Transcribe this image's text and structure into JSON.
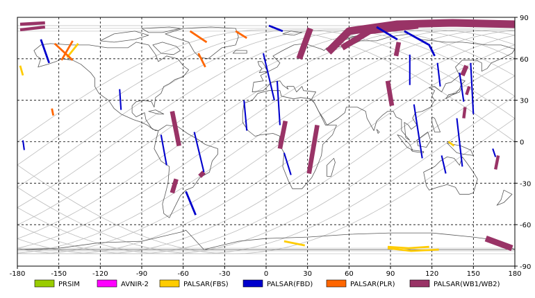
{
  "map": {
    "x_ticks": [
      "-180",
      "-150",
      "-120",
      "-90",
      "-60",
      "-30",
      "0",
      "30",
      "60",
      "90",
      "120",
      "150",
      "180"
    ],
    "y_ticks": [
      "90",
      "60",
      "30",
      "0",
      "-30",
      "-60",
      "-90"
    ],
    "lon_range": [
      -180,
      180
    ],
    "lat_range": [
      -90,
      90
    ],
    "grid": "dashed",
    "colors": {
      "frame": "#000000",
      "grid": "#000000",
      "coast": "#555555",
      "orbit": "#bbbbbb"
    }
  },
  "legend": {
    "placement": "bottom",
    "items": [
      {
        "label": "PRSIM",
        "color": "#99cc00"
      },
      {
        "label": "AVNIR-2",
        "color": "#ff00ff"
      },
      {
        "label": "PALSAR(FBS)",
        "color": "#ffcc00"
      },
      {
        "label": "PALSAR(FBD)",
        "color": "#0000cc"
      },
      {
        "label": "PALSAR(PLR)",
        "color": "#ff6600"
      },
      {
        "label": "PALSAR(WB1/WB2)",
        "color": "#993366"
      }
    ]
  },
  "tracks": {
    "wb": [
      {
        "pts": [
          [
            -178,
            85
          ],
          [
            -160,
            86
          ]
        ],
        "w": 2
      },
      {
        "pts": [
          [
            -178,
            81
          ],
          [
            -160,
            83
          ]
        ],
        "w": 2
      },
      {
        "pts": [
          [
            24,
            60
          ],
          [
            32,
            82
          ]
        ],
        "w": 4
      },
      {
        "pts": [
          [
            45,
            65
          ],
          [
            60,
            80
          ],
          [
            95,
            85
          ],
          [
            135,
            86
          ],
          [
            180,
            85
          ]
        ],
        "w": 5
      },
      {
        "pts": [
          [
            55,
            68
          ],
          [
            75,
            80
          ],
          [
            110,
            84
          ]
        ],
        "w": 4
      },
      {
        "pts": [
          [
            94,
            62
          ],
          [
            96,
            72
          ]
        ],
        "w": 3
      },
      {
        "pts": [
          [
            91,
            26
          ],
          [
            88,
            44
          ]
        ],
        "w": 3
      },
      {
        "pts": [
          [
            -63,
            -3
          ],
          [
            -68,
            22
          ]
        ],
        "w": 3
      },
      {
        "pts": [
          [
            -68,
            -37
          ],
          [
            -65,
            -27
          ]
        ],
        "w": 3
      },
      {
        "pts": [
          [
            -48,
            -25
          ],
          [
            -45,
            -22
          ]
        ],
        "w": 3
      },
      {
        "pts": [
          [
            10,
            -5
          ],
          [
            14,
            15
          ]
        ],
        "w": 3
      },
      {
        "pts": [
          [
            31,
            -23
          ],
          [
            37,
            12
          ]
        ],
        "w": 3
      },
      {
        "pts": [
          [
            143,
            17
          ],
          [
            144,
            25
          ]
        ],
        "w": 2
      },
      {
        "pts": [
          [
            145,
            34
          ],
          [
            147,
            40
          ]
        ],
        "w": 2
      },
      {
        "pts": [
          [
            142,
            48
          ],
          [
            145,
            55
          ]
        ],
        "w": 3
      },
      {
        "pts": [
          [
            166,
            -20
          ],
          [
            168,
            -10
          ]
        ],
        "w": 2
      },
      {
        "pts": [
          [
            159,
            -70
          ],
          [
            178,
            -77
          ]
        ],
        "w": 4
      }
    ],
    "fbd": [
      {
        "pts": [
          [
            -163,
            74
          ],
          [
            -157,
            57
          ]
        ],
        "w": 2
      },
      {
        "pts": [
          [
            -106,
            38
          ],
          [
            -105,
            23
          ]
        ],
        "w": 1.5
      },
      {
        "pts": [
          [
            -76,
            5
          ],
          [
            -72,
            -17
          ]
        ],
        "w": 1.5
      },
      {
        "pts": [
          [
            -58,
            -36
          ],
          [
            -51,
            -53
          ]
        ],
        "w": 2
      },
      {
        "pts": [
          [
            -52,
            7
          ],
          [
            -45,
            -22
          ]
        ],
        "w": 1.5
      },
      {
        "pts": [
          [
            -16,
            30
          ],
          [
            -14,
            8
          ]
        ],
        "w": 1.5
      },
      {
        "pts": [
          [
            -2,
            64
          ],
          [
            6,
            30
          ]
        ],
        "w": 1.5
      },
      {
        "pts": [
          [
            8,
            44
          ],
          [
            10,
            12
          ]
        ],
        "w": 1.5
      },
      {
        "pts": [
          [
            13,
            -8
          ],
          [
            18,
            -24
          ]
        ],
        "w": 1.5
      },
      {
        "pts": [
          [
            2,
            84
          ],
          [
            12,
            80
          ]
        ],
        "w": 2
      },
      {
        "pts": [
          [
            80,
            83
          ],
          [
            95,
            74
          ]
        ],
        "w": 2
      },
      {
        "pts": [
          [
            100,
            80
          ],
          [
            118,
            70
          ],
          [
            122,
            62
          ]
        ],
        "w": 2
      },
      {
        "pts": [
          [
            104,
            63
          ],
          [
            104,
            41
          ]
        ],
        "w": 1.5
      },
      {
        "pts": [
          [
            107,
            27
          ],
          [
            113,
            -12
          ]
        ],
        "w": 1.5
      },
      {
        "pts": [
          [
            124,
            57
          ],
          [
            126,
            40
          ]
        ],
        "w": 1.5
      },
      {
        "pts": [
          [
            138,
            17
          ],
          [
            142,
            -18
          ]
        ],
        "w": 1.5
      },
      {
        "pts": [
          [
            140,
            50
          ],
          [
            143,
            29
          ]
        ],
        "w": 1.5
      },
      {
        "pts": [
          [
            148,
            57
          ],
          [
            150,
            20
          ]
        ],
        "w": 1.5
      },
      {
        "pts": [
          [
            127,
            -10
          ],
          [
            130,
            -23
          ]
        ],
        "w": 1.5
      },
      {
        "pts": [
          [
            -176,
            1
          ],
          [
            -175,
            -6
          ]
        ],
        "w": 1.5
      },
      {
        "pts": [
          [
            164,
            -5
          ],
          [
            166,
            -11
          ]
        ],
        "w": 1.5
      }
    ],
    "fbs": [
      {
        "pts": [
          [
            -178,
            55
          ],
          [
            -176,
            48
          ]
        ],
        "w": 2
      },
      {
        "pts": [
          [
            -144,
            61
          ],
          [
            -136,
            71
          ]
        ],
        "w": 2
      },
      {
        "pts": [
          [
            13,
            -72
          ],
          [
            28,
            -75
          ]
        ],
        "w": 2
      },
      {
        "pts": [
          [
            88,
            -76
          ],
          [
            103,
            -77
          ],
          [
            118,
            -76
          ]
        ],
        "w": 2
      },
      {
        "pts": [
          [
            88,
            -77
          ],
          [
            105,
            -79
          ],
          [
            125,
            -78
          ]
        ],
        "w": 2
      },
      {
        "pts": [
          [
            132,
            0
          ],
          [
            136,
            -3
          ]
        ],
        "w": 2
      }
    ],
    "plr": [
      {
        "pts": [
          [
            -153,
            71
          ],
          [
            -140,
            59
          ]
        ],
        "w": 2
      },
      {
        "pts": [
          [
            -148,
            59
          ],
          [
            -140,
            73
          ]
        ],
        "w": 2
      },
      {
        "pts": [
          [
            -55,
            80
          ],
          [
            -43,
            72
          ]
        ],
        "w": 2
      },
      {
        "pts": [
          [
            -49,
            64
          ],
          [
            -44,
            54
          ]
        ],
        "w": 2
      },
      {
        "pts": [
          [
            -22,
            80
          ],
          [
            -14,
            75
          ]
        ],
        "w": 2
      },
      {
        "pts": [
          [
            -155,
            24
          ],
          [
            -154,
            19
          ]
        ],
        "w": 2
      }
    ]
  }
}
